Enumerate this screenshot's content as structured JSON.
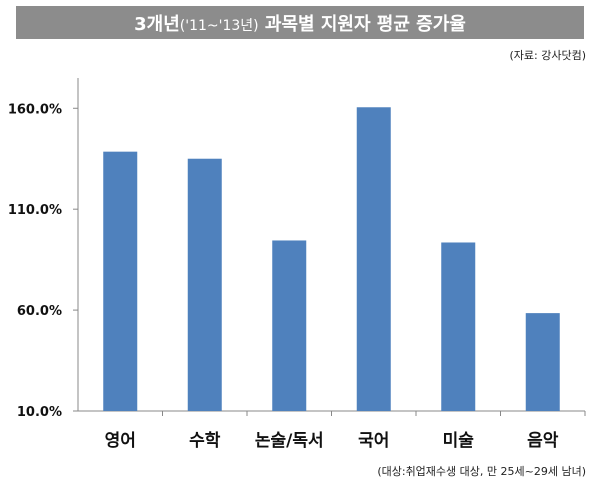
{
  "header": {
    "title_prefix": "3개년",
    "title_period": "('11~'13년)",
    "title_suffix": " 과목별 지원자 평균 증가율"
  },
  "source_note": "(자료: 강사닷컴)",
  "footer_note": "(대상:취업재수생 대상, 만 25세~29세 남녀)",
  "colors": {
    "bar": "#4f81bd",
    "title_bg": "#8c8c8c"
  },
  "chart_data": {
    "type": "bar",
    "categories": [
      "영어",
      "수학",
      "논술/독서",
      "국어",
      "미술",
      "음악"
    ],
    "values": [
      138.5,
      135.0,
      94.5,
      160.5,
      93.5,
      58.5
    ],
    "yticks": [
      "10.0%",
      "60.0%",
      "110.0%",
      "160.0%"
    ],
    "ytick_values": [
      10,
      60,
      110,
      160
    ],
    "ylim": [
      10,
      175
    ],
    "unit": "%",
    "grid": false,
    "legend": "none"
  }
}
